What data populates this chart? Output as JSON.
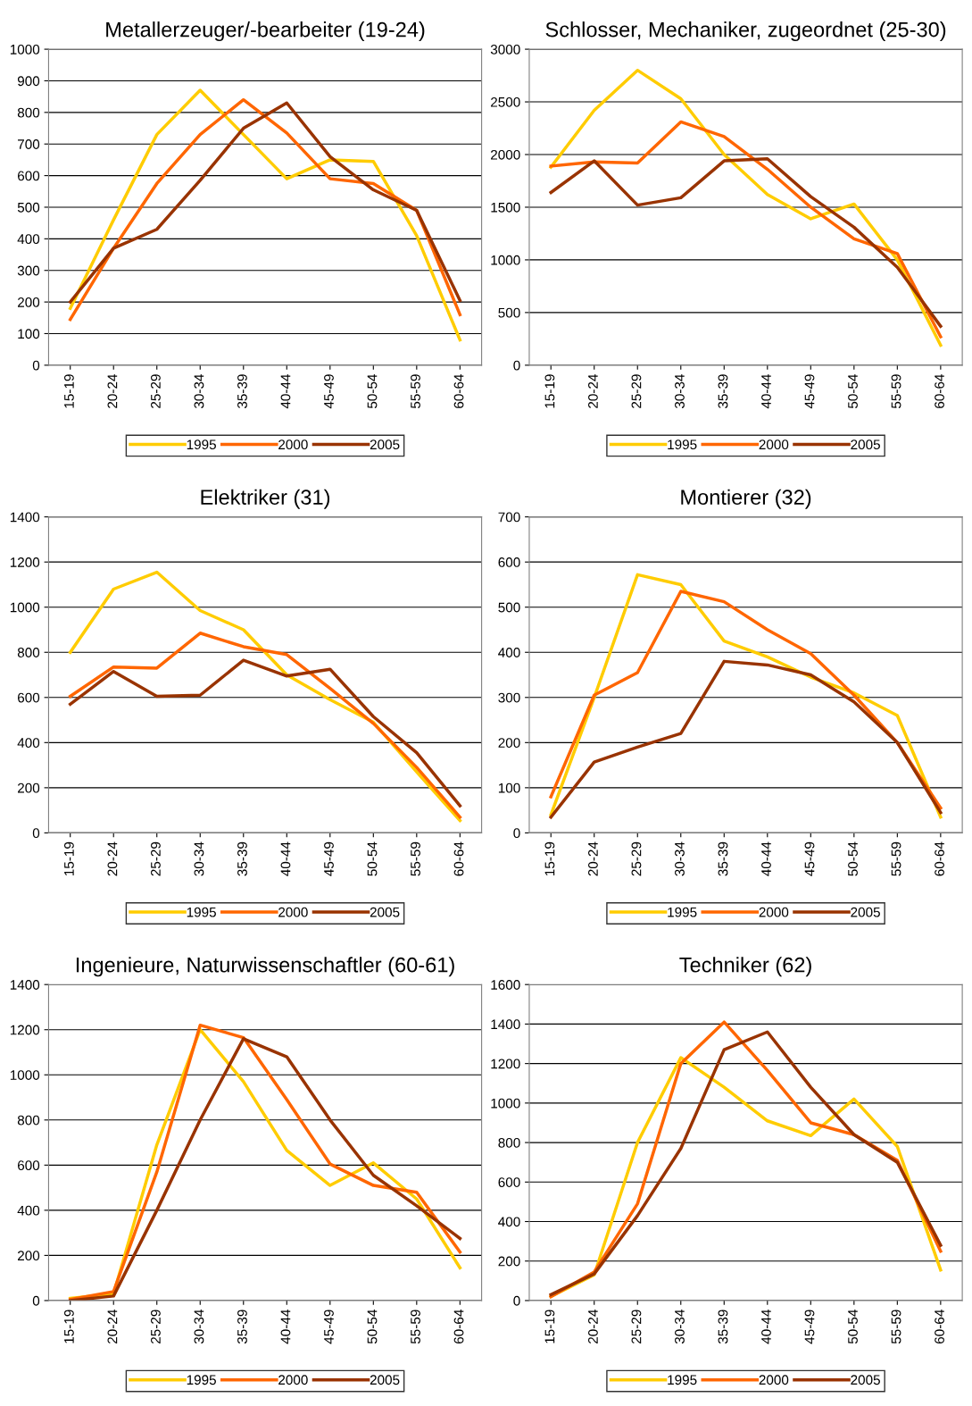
{
  "chart_data": [
    {
      "type": "line",
      "title": "Metallerzeuger/-bearbeiter (19-24)",
      "categories": [
        "15-19",
        "20-24",
        "25-29",
        "30-34",
        "35-39",
        "40-44",
        "45-49",
        "50-54",
        "55-59",
        "60-64"
      ],
      "ylim": [
        0,
        1000
      ],
      "yticks": [
        0,
        100,
        200,
        300,
        400,
        500,
        600,
        700,
        800,
        900,
        1000
      ],
      "grid": "y",
      "legend": "bottom",
      "marker": "none",
      "series": [
        {
          "name": "1995",
          "color": "#ffcc00",
          "values": [
            180,
            460,
            730,
            870,
            730,
            590,
            650,
            645,
            410,
            80
          ]
        },
        {
          "name": "2000",
          "color": "#ff6600",
          "values": [
            145,
            370,
            575,
            730,
            840,
            735,
            590,
            575,
            490,
            160
          ]
        },
        {
          "name": "2005",
          "color": "#993300",
          "values": [
            200,
            370,
            430,
            585,
            750,
            830,
            660,
            555,
            490,
            205
          ]
        }
      ]
    },
    {
      "type": "line",
      "title": "Schlosser, Mechaniker, zugeordnet (25-30)",
      "categories": [
        "15-19",
        "20-24",
        "25-29",
        "30-34",
        "35-39",
        "40-44",
        "45-49",
        "50-54",
        "55-59",
        "60-64"
      ],
      "ylim": [
        0,
        3000
      ],
      "yticks": [
        0,
        500,
        1000,
        1500,
        2000,
        2500,
        3000
      ],
      "grid": "y",
      "legend": "bottom",
      "marker": "none",
      "series": [
        {
          "name": "1995",
          "color": "#ffcc00",
          "values": [
            1880,
            2420,
            2800,
            2530,
            2000,
            1620,
            1390,
            1530,
            1000,
            190
          ]
        },
        {
          "name": "2000",
          "color": "#ff6600",
          "values": [
            1890,
            1930,
            1920,
            2310,
            2170,
            1860,
            1500,
            1200,
            1060,
            270
          ]
        },
        {
          "name": "2005",
          "color": "#993300",
          "values": [
            1640,
            1940,
            1520,
            1590,
            1940,
            1960,
            1600,
            1310,
            930,
            370
          ]
        }
      ]
    },
    {
      "type": "line",
      "title": "Elektriker (31)",
      "categories": [
        "15-19",
        "20-24",
        "25-29",
        "30-34",
        "35-39",
        "40-44",
        "45-49",
        "50-54",
        "55-59",
        "60-64"
      ],
      "ylim": [
        0,
        1400
      ],
      "yticks": [
        0,
        200,
        400,
        600,
        800,
        1000,
        1200,
        1400
      ],
      "grid": "y",
      "legend": "bottom",
      "marker": "none",
      "series": [
        {
          "name": "1995",
          "color": "#ffcc00",
          "values": [
            800,
            1080,
            1155,
            985,
            900,
            700,
            590,
            490,
            270,
            55
          ]
        },
        {
          "name": "2000",
          "color": "#ff6600",
          "values": [
            605,
            735,
            730,
            885,
            825,
            790,
            640,
            485,
            290,
            70
          ]
        },
        {
          "name": "2005",
          "color": "#993300",
          "values": [
            570,
            715,
            605,
            610,
            765,
            695,
            725,
            515,
            355,
            120
          ]
        }
      ]
    },
    {
      "type": "line",
      "title": "Montierer (32)",
      "categories": [
        "15-19",
        "20-24",
        "25-29",
        "30-34",
        "35-39",
        "40-44",
        "45-49",
        "50-54",
        "55-59",
        "60-64"
      ],
      "ylim": [
        0,
        700
      ],
      "yticks": [
        0,
        100,
        200,
        300,
        400,
        500,
        600,
        700
      ],
      "grid": "y",
      "legend": "bottom",
      "marker": "none",
      "series": [
        {
          "name": "1995",
          "color": "#ffcc00",
          "values": [
            40,
            300,
            572,
            550,
            425,
            390,
            345,
            310,
            260,
            35
          ]
        },
        {
          "name": "2000",
          "color": "#ff6600",
          "values": [
            80,
            305,
            355,
            535,
            512,
            450,
            397,
            305,
            200,
            55
          ]
        },
        {
          "name": "2005",
          "color": "#993300",
          "values": [
            35,
            157,
            190,
            220,
            380,
            372,
            350,
            290,
            200,
            45
          ]
        }
      ]
    },
    {
      "type": "line",
      "title": "Ingenieure, Naturwissenschaftler (60-61)",
      "categories": [
        "15-19",
        "20-24",
        "25-29",
        "30-34",
        "35-39",
        "40-44",
        "45-49",
        "50-54",
        "55-59",
        "60-64"
      ],
      "ylim": [
        0,
        1400
      ],
      "yticks": [
        0,
        200,
        400,
        600,
        800,
        1000,
        1200,
        1400
      ],
      "grid": "y",
      "legend": "bottom",
      "marker": "none",
      "series": [
        {
          "name": "1995",
          "color": "#ffcc00",
          "values": [
            10,
            30,
            690,
            1200,
            970,
            665,
            510,
            610,
            450,
            145
          ]
        },
        {
          "name": "2000",
          "color": "#ff6600",
          "values": [
            5,
            40,
            570,
            1220,
            1165,
            890,
            605,
            510,
            480,
            215
          ]
        },
        {
          "name": "2005",
          "color": "#993300",
          "values": [
            0,
            20,
            400,
            800,
            1160,
            1080,
            800,
            555,
            420,
            275
          ]
        }
      ]
    },
    {
      "type": "line",
      "title": "Techniker (62)",
      "categories": [
        "15-19",
        "20-24",
        "25-29",
        "30-34",
        "35-39",
        "40-44",
        "45-49",
        "50-54",
        "55-59",
        "60-64"
      ],
      "ylim": [
        0,
        1600
      ],
      "yticks": [
        0,
        200,
        400,
        600,
        800,
        1000,
        1200,
        1400,
        1600
      ],
      "grid": "y",
      "legend": "bottom",
      "marker": "none",
      "series": [
        {
          "name": "1995",
          "color": "#ffcc00",
          "values": [
            20,
            130,
            800,
            1230,
            1080,
            910,
            835,
            1020,
            780,
            155
          ]
        },
        {
          "name": "2000",
          "color": "#ff6600",
          "values": [
            20,
            145,
            490,
            1200,
            1410,
            1165,
            900,
            840,
            710,
            250
          ]
        },
        {
          "name": "2005",
          "color": "#993300",
          "values": [
            30,
            135,
            430,
            770,
            1270,
            1360,
            1080,
            840,
            700,
            280
          ]
        }
      ]
    }
  ]
}
